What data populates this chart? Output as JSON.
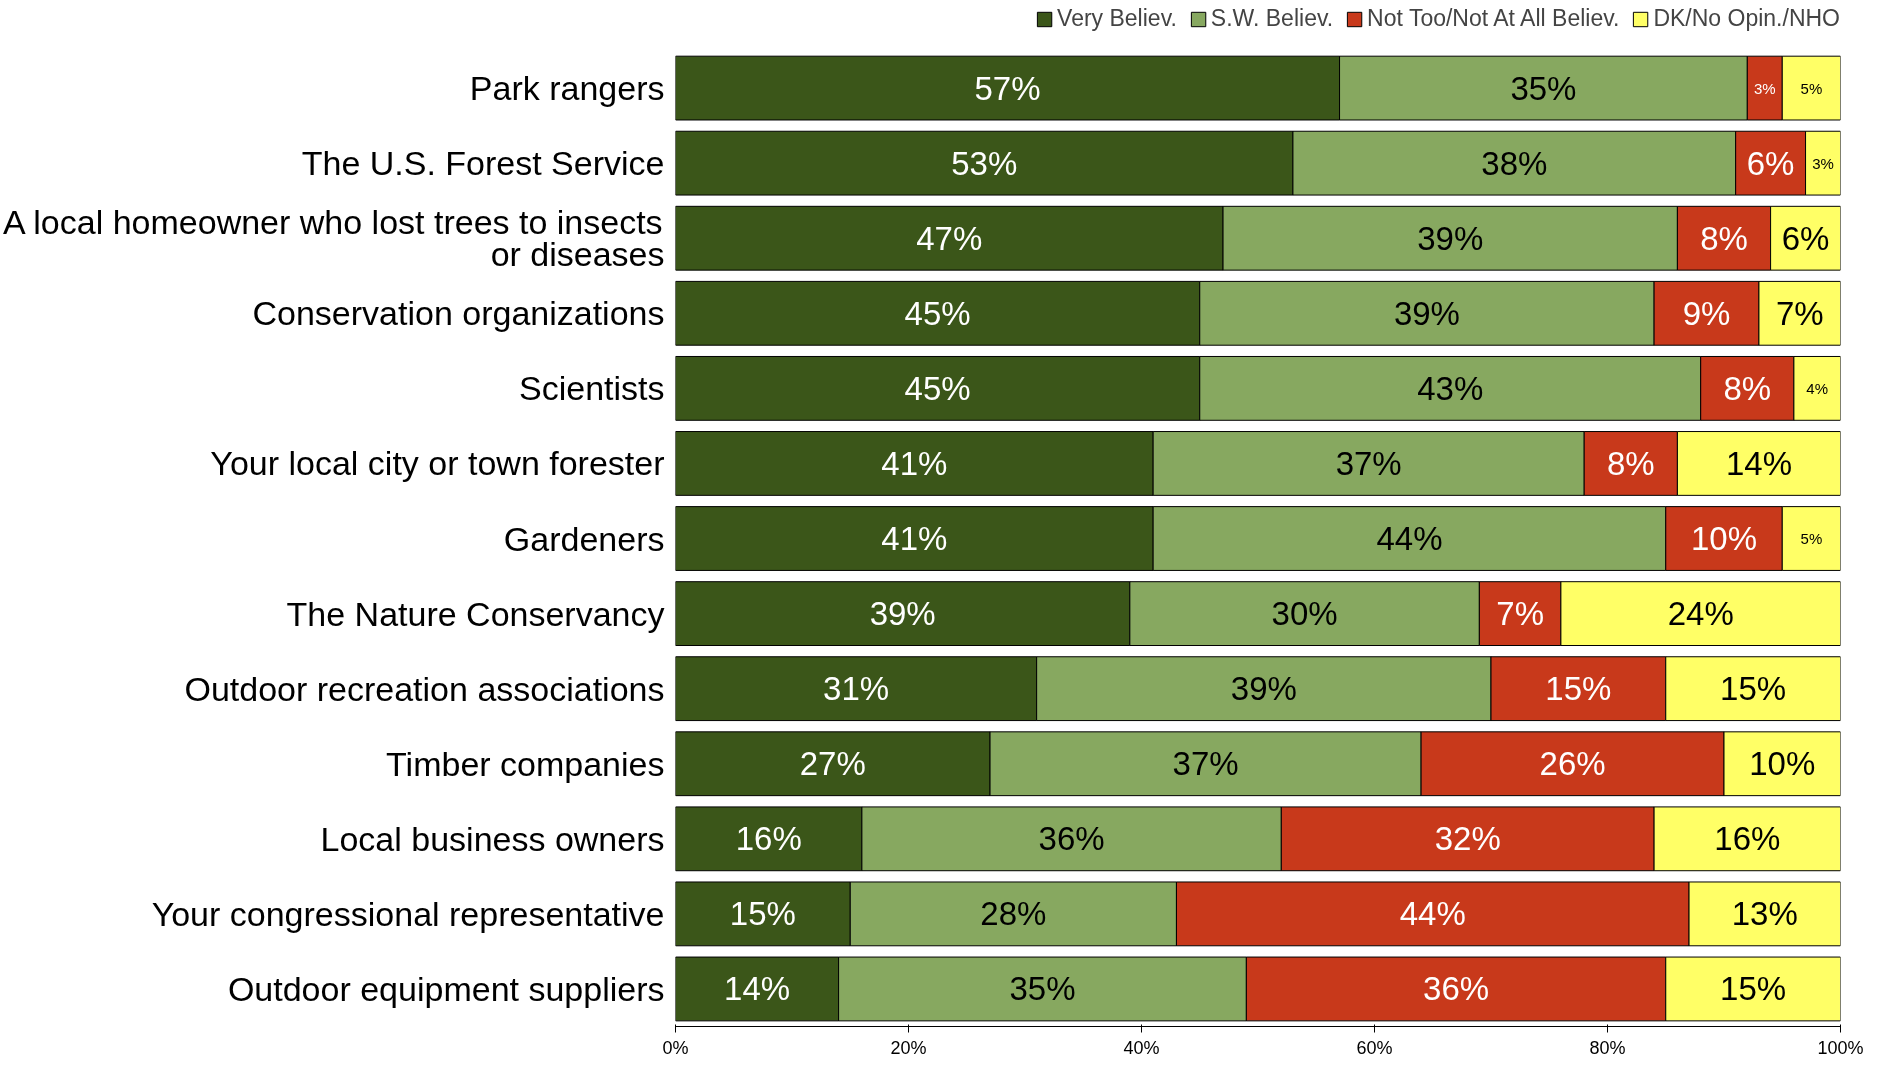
{
  "chart_data": {
    "type": "bar",
    "orientation": "horizontal",
    "stacked": true,
    "categories": [
      "Park rangers",
      "The U.S. Forest Service",
      "A local homeowner who lost trees to insects or diseases",
      "Conservation organizations",
      "Scientists",
      "Your local city or town forester",
      "Gardeners",
      "The Nature Conservancy",
      "Outdoor recreation associations",
      "Timber companies",
      "Local business owners",
      "Your congressional representative",
      "Outdoor equipment suppliers"
    ],
    "series": [
      {
        "name": "Very Believ.",
        "color": "#3b5619",
        "values": [
          57,
          53,
          47,
          45,
          45,
          41,
          41,
          39,
          31,
          27,
          16,
          15,
          14
        ],
        "value_labels": [
          "57%",
          "53%",
          "47%",
          "45%",
          "45%",
          "41%",
          "41%",
          "39%",
          "31%",
          "27%",
          "16%",
          "15%",
          "14%"
        ]
      },
      {
        "name": "S.W. Believ.",
        "color": "#87a860",
        "values": [
          35,
          38,
          39,
          39,
          43,
          37,
          44,
          30,
          39,
          37,
          36,
          28,
          35
        ],
        "value_labels": [
          "35%",
          "38%",
          "39%",
          "39%",
          "43%",
          "37%",
          "44%",
          "30%",
          "39%",
          "37%",
          "36%",
          "28%",
          "35%"
        ]
      },
      {
        "name": "Not Too/Not At All Believ.",
        "color": "#c8391b",
        "values": [
          3,
          6,
          8,
          9,
          8,
          8,
          10,
          7,
          15,
          26,
          32,
          44,
          36
        ],
        "value_labels": [
          "3%",
          "6%",
          "8%",
          "9%",
          "8%",
          "8%",
          "10%",
          "7%",
          "15%",
          "26%",
          "32%",
          "44%",
          "36%"
        ]
      },
      {
        "name": "DK/No Opin./NHO",
        "color": "#ffff66",
        "values": [
          5,
          3,
          6,
          7,
          4,
          14,
          5,
          24,
          15,
          10,
          16,
          13,
          15
        ],
        "value_labels": [
          "5%",
          "3%",
          "6%",
          "7%",
          "4%",
          "14%",
          "5%",
          "24%",
          "15%",
          "10%",
          "16%",
          "13%",
          "15%"
        ]
      }
    ],
    "xlim": [
      0,
      100
    ],
    "xticks": [
      {
        "value": 0,
        "label": "0%"
      },
      {
        "value": 20,
        "label": "20%"
      },
      {
        "value": 40,
        "label": "40%"
      },
      {
        "value": 60,
        "label": "60%"
      },
      {
        "value": 80,
        "label": "80%"
      },
      {
        "value": 100,
        "label": "100%"
      }
    ],
    "grid": false,
    "legend": "top right"
  }
}
